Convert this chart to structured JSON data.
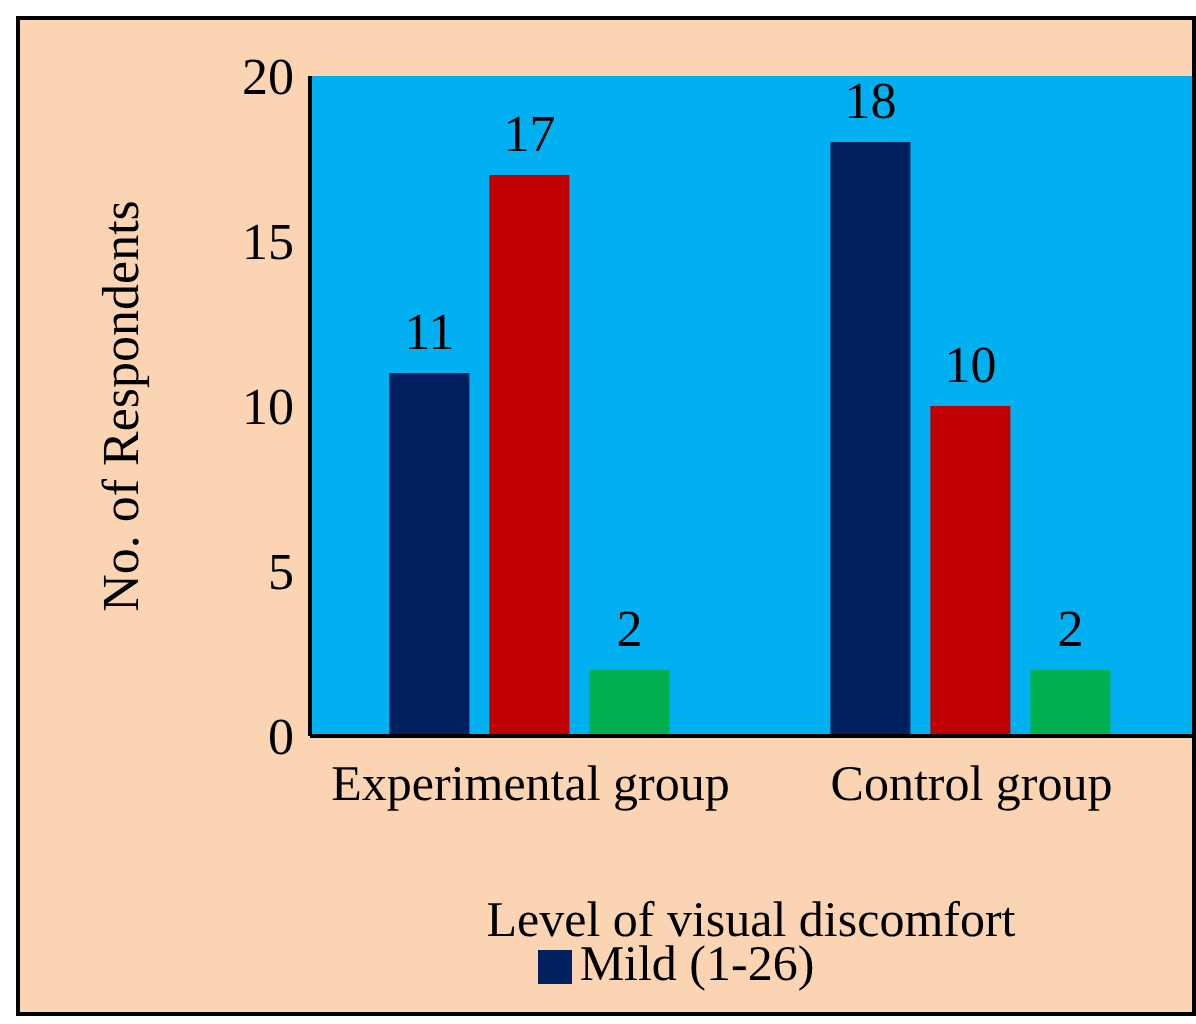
{
  "chart_data": {
    "type": "bar",
    "xlabel": "Level of visual discomfort",
    "ylabel": "No. of Respondents",
    "categories": [
      "Experimental group",
      "Control group"
    ],
    "series": [
      {
        "name": "Mild (1-26)",
        "color": "#002060",
        "values": [
          11,
          18
        ]
      },
      {
        "color": "#c00000",
        "values": [
          17,
          10
        ]
      },
      {
        "color": "#00b050",
        "values": [
          2,
          2
        ]
      }
    ],
    "ylim": [
      0,
      20
    ],
    "yticks": [
      0,
      5,
      10,
      15,
      20
    ],
    "data_labels": true,
    "legend": "bottom"
  }
}
